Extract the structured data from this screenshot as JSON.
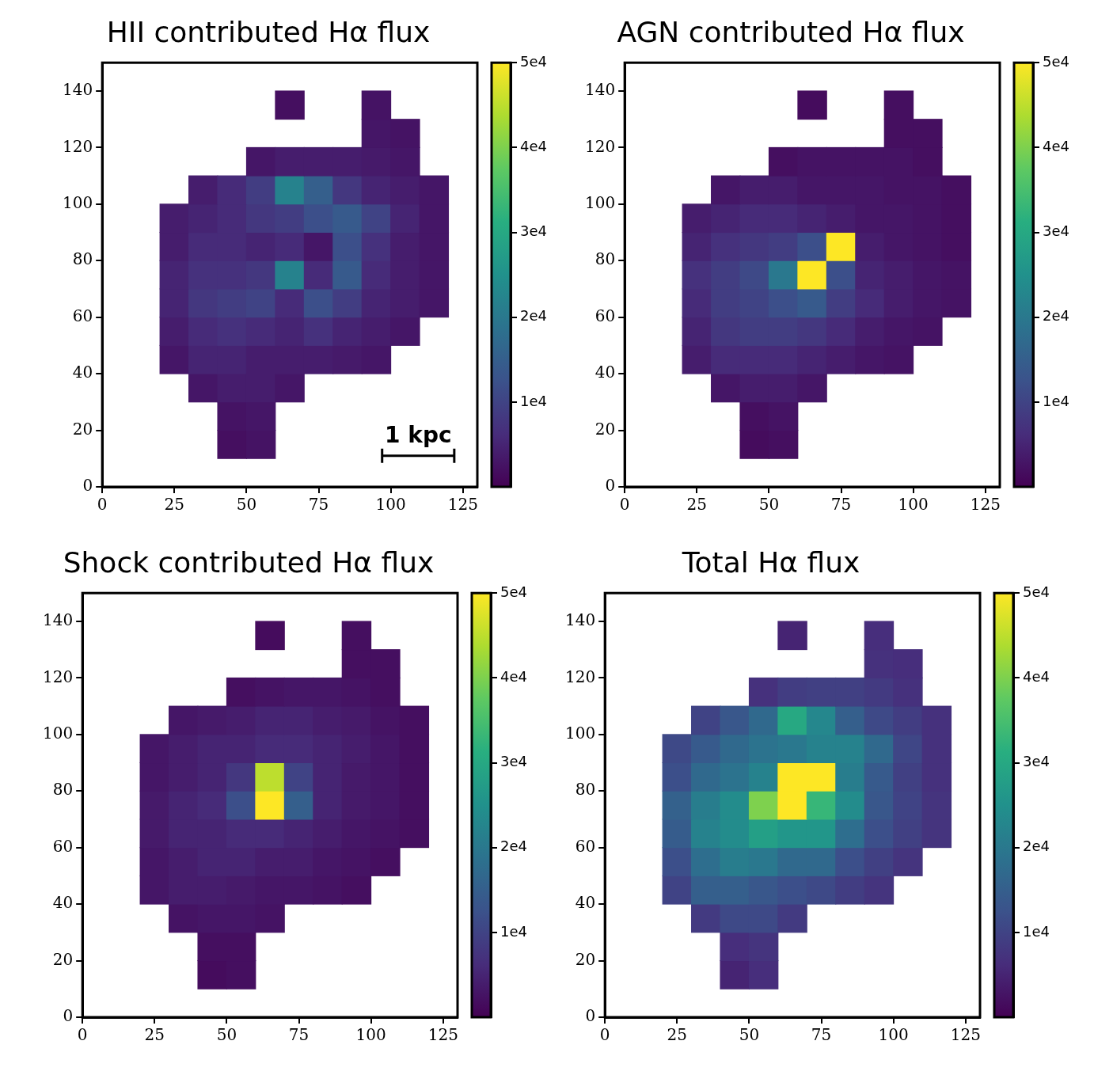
{
  "chart_data": [
    {
      "type": "heatmap",
      "title": "HII contributed Hα flux",
      "color": "viridis",
      "grid": false,
      "xlim": [
        0,
        130
      ],
      "xticks": [
        0,
        25,
        50,
        75,
        100,
        125
      ],
      "ylim": [
        0,
        150
      ],
      "yticks": [
        0,
        20,
        40,
        60,
        80,
        100,
        120,
        140
      ],
      "xbins": [
        0,
        10,
        20,
        30,
        40,
        50,
        60,
        70,
        80,
        90,
        100,
        110,
        120,
        130
      ],
      "ybins": [
        0,
        10,
        20,
        30,
        40,
        50,
        60,
        70,
        80,
        90,
        100,
        110,
        120,
        130,
        140,
        150
      ],
      "cells": [
        [
          null,
          null,
          null,
          null,
          null,
          null,
          null,
          null,
          null,
          null,
          null,
          null,
          null
        ],
        [
          null,
          null,
          null,
          null,
          2000,
          2500,
          null,
          null,
          null,
          null,
          null,
          null,
          null
        ],
        [
          null,
          null,
          null,
          null,
          2500,
          3000,
          null,
          null,
          null,
          null,
          null,
          null,
          null
        ],
        [
          null,
          null,
          null,
          3000,
          4000,
          4000,
          3000,
          null,
          null,
          null,
          null,
          null,
          null
        ],
        [
          null,
          null,
          3000,
          5000,
          5000,
          4000,
          4000,
          4000,
          3500,
          3000,
          null,
          null,
          null
        ],
        [
          null,
          null,
          4000,
          6000,
          7000,
          6000,
          5000,
          7000,
          5000,
          4000,
          3000,
          null,
          null
        ],
        [
          null,
          null,
          5000,
          8000,
          9000,
          10000,
          6000,
          12000,
          9000,
          5000,
          4000,
          3000,
          null
        ],
        [
          null,
          null,
          5000,
          7000,
          7000,
          8000,
          22000,
          6000,
          14000,
          6000,
          4000,
          3000,
          null
        ],
        [
          null,
          null,
          4000,
          6000,
          6000,
          5000,
          6000,
          3000,
          12000,
          7000,
          4000,
          3000,
          null
        ],
        [
          null,
          null,
          4000,
          5000,
          6000,
          8000,
          9000,
          12000,
          14000,
          10000,
          5000,
          3000,
          null
        ],
        [
          null,
          null,
          null,
          4000,
          6000,
          9000,
          22000,
          15000,
          8000,
          5000,
          4000,
          3000,
          null
        ],
        [
          null,
          null,
          null,
          null,
          null,
          3000,
          4000,
          4000,
          4000,
          3500,
          3000,
          null,
          null
        ],
        [
          null,
          null,
          null,
          null,
          null,
          null,
          null,
          null,
          null,
          3000,
          2500,
          null,
          null
        ],
        [
          null,
          null,
          null,
          null,
          null,
          null,
          2000,
          null,
          null,
          2500,
          null,
          null,
          null
        ],
        [
          null,
          null,
          null,
          null,
          null,
          null,
          null,
          null,
          null,
          null,
          null,
          null,
          null
        ]
      ],
      "colorbar": {
        "range": [
          0,
          50000
        ],
        "ticks": [
          {
            "value": 10000,
            "label": "1e4"
          },
          {
            "value": 20000,
            "label": "2e4"
          },
          {
            "value": 30000,
            "label": "3e4"
          },
          {
            "value": 40000,
            "label": "4e4"
          },
          {
            "value": 50000,
            "label": "5e4"
          }
        ]
      },
      "annotations": [
        {
          "text": "1 kpc",
          "x": [
            97,
            122
          ],
          "y": 11
        }
      ]
    },
    {
      "type": "heatmap",
      "title": "AGN contributed Hα flux",
      "color": "viridis",
      "grid": false,
      "xlim": [
        0,
        130
      ],
      "xticks": [
        0,
        25,
        50,
        75,
        100,
        125
      ],
      "ylim": [
        0,
        150
      ],
      "yticks": [
        0,
        20,
        40,
        60,
        80,
        100,
        120,
        140
      ],
      "xbins": [
        0,
        10,
        20,
        30,
        40,
        50,
        60,
        70,
        80,
        90,
        100,
        110,
        120,
        130
      ],
      "ybins": [
        0,
        10,
        20,
        30,
        40,
        50,
        60,
        70,
        80,
        90,
        100,
        110,
        120,
        130,
        140,
        150
      ],
      "cells": [
        [
          null,
          null,
          null,
          null,
          null,
          null,
          null,
          null,
          null,
          null,
          null,
          null,
          null
        ],
        [
          null,
          null,
          null,
          null,
          1500,
          2000,
          null,
          null,
          null,
          null,
          null,
          null,
          null
        ],
        [
          null,
          null,
          null,
          null,
          2000,
          2500,
          null,
          null,
          null,
          null,
          null,
          null,
          null
        ],
        [
          null,
          null,
          null,
          3000,
          4000,
          4000,
          3000,
          null,
          null,
          null,
          null,
          null,
          null
        ],
        [
          null,
          null,
          4000,
          6000,
          6000,
          6000,
          5000,
          4000,
          3000,
          2500,
          null,
          null,
          null
        ],
        [
          null,
          null,
          5000,
          8000,
          9000,
          9000,
          8000,
          6000,
          4000,
          3000,
          2500,
          null,
          null
        ],
        [
          null,
          null,
          6000,
          9000,
          10000,
          12000,
          14000,
          9000,
          6000,
          4000,
          3000,
          2500,
          null
        ],
        [
          null,
          null,
          7000,
          9000,
          11000,
          20000,
          50000,
          12000,
          5000,
          4000,
          3000,
          2500,
          null
        ],
        [
          null,
          null,
          5000,
          7000,
          8000,
          9000,
          12000,
          50000,
          4000,
          3000,
          2500,
          2000,
          null
        ],
        [
          null,
          null,
          4000,
          5000,
          6000,
          6000,
          5000,
          4000,
          3000,
          3000,
          2500,
          2000,
          null
        ],
        [
          null,
          null,
          null,
          3000,
          4000,
          4000,
          3000,
          3000,
          3000,
          2500,
          2500,
          2000,
          null
        ],
        [
          null,
          null,
          null,
          null,
          null,
          2000,
          2500,
          2500,
          2500,
          2500,
          2000,
          null,
          null
        ],
        [
          null,
          null,
          null,
          null,
          null,
          null,
          null,
          null,
          null,
          2000,
          2000,
          null,
          null
        ],
        [
          null,
          null,
          null,
          null,
          null,
          null,
          1500,
          null,
          null,
          2000,
          null,
          null,
          null
        ],
        [
          null,
          null,
          null,
          null,
          null,
          null,
          null,
          null,
          null,
          null,
          null,
          null,
          null
        ]
      ],
      "colorbar": {
        "range": [
          0,
          50000
        ],
        "ticks": [
          {
            "value": 10000,
            "label": "1e4"
          },
          {
            "value": 20000,
            "label": "2e4"
          },
          {
            "value": 30000,
            "label": "3e4"
          },
          {
            "value": 40000,
            "label": "4e4"
          },
          {
            "value": 50000,
            "label": "5e4"
          }
        ]
      }
    },
    {
      "type": "heatmap",
      "title": "Shock contributed Hα flux",
      "color": "viridis",
      "grid": false,
      "xlim": [
        0,
        130
      ],
      "xticks": [
        0,
        25,
        50,
        75,
        100,
        125
      ],
      "ylim": [
        0,
        150
      ],
      "yticks": [
        0,
        20,
        40,
        60,
        80,
        100,
        120,
        140
      ],
      "xbins": [
        0,
        10,
        20,
        30,
        40,
        50,
        60,
        70,
        80,
        90,
        100,
        110,
        120,
        130
      ],
      "ybins": [
        0,
        10,
        20,
        30,
        40,
        50,
        60,
        70,
        80,
        90,
        100,
        110,
        120,
        130,
        140,
        150
      ],
      "cells": [
        [
          null,
          null,
          null,
          null,
          null,
          null,
          null,
          null,
          null,
          null,
          null,
          null,
          null
        ],
        [
          null,
          null,
          null,
          null,
          1500,
          2000,
          null,
          null,
          null,
          null,
          null,
          null,
          null
        ],
        [
          null,
          null,
          null,
          null,
          2000,
          2000,
          null,
          null,
          null,
          null,
          null,
          null,
          null
        ],
        [
          null,
          null,
          null,
          2500,
          3000,
          3000,
          2500,
          null,
          null,
          null,
          null,
          null,
          null
        ],
        [
          null,
          null,
          3000,
          4000,
          4000,
          3500,
          3000,
          3000,
          2500,
          2000,
          null,
          null,
          null
        ],
        [
          null,
          null,
          3000,
          4000,
          5000,
          5000,
          4000,
          4000,
          3000,
          2500,
          2000,
          null,
          null
        ],
        [
          null,
          null,
          3500,
          5000,
          5000,
          6000,
          6000,
          5000,
          4000,
          3000,
          2500,
          2000,
          null
        ],
        [
          null,
          null,
          3500,
          5000,
          6000,
          12000,
          50000,
          15000,
          5000,
          3500,
          3000,
          2000,
          null
        ],
        [
          null,
          null,
          3000,
          4000,
          5000,
          8000,
          45000,
          10000,
          5000,
          3500,
          3000,
          2000,
          null
        ],
        [
          null,
          null,
          3000,
          4000,
          5000,
          5000,
          6000,
          6000,
          5000,
          4000,
          3000,
          2000,
          null
        ],
        [
          null,
          null,
          null,
          3000,
          3500,
          4000,
          5000,
          5000,
          4000,
          3500,
          2500,
          2000,
          null
        ],
        [
          null,
          null,
          null,
          null,
          null,
          2000,
          2500,
          3000,
          3000,
          2500,
          2000,
          null,
          null
        ],
        [
          null,
          null,
          null,
          null,
          null,
          null,
          null,
          null,
          null,
          2000,
          2000,
          null,
          null
        ],
        [
          null,
          null,
          null,
          null,
          null,
          null,
          1500,
          null,
          null,
          2000,
          null,
          null,
          null
        ],
        [
          null,
          null,
          null,
          null,
          null,
          null,
          null,
          null,
          null,
          null,
          null,
          null,
          null
        ]
      ],
      "colorbar": {
        "range": [
          0,
          50000
        ],
        "ticks": [
          {
            "value": 10000,
            "label": "1e4"
          },
          {
            "value": 20000,
            "label": "2e4"
          },
          {
            "value": 30000,
            "label": "3e4"
          },
          {
            "value": 40000,
            "label": "4e4"
          },
          {
            "value": 50000,
            "label": "5e4"
          }
        ]
      }
    },
    {
      "type": "heatmap",
      "title": "Total Hα flux",
      "color": "viridis",
      "grid": false,
      "xlim": [
        0,
        130
      ],
      "xticks": [
        0,
        25,
        50,
        75,
        100,
        125
      ],
      "ylim": [
        0,
        150
      ],
      "yticks": [
        0,
        20,
        40,
        60,
        80,
        100,
        120,
        140
      ],
      "xbins": [
        0,
        10,
        20,
        30,
        40,
        50,
        60,
        70,
        80,
        90,
        100,
        110,
        120,
        130
      ],
      "ybins": [
        0,
        10,
        20,
        30,
        40,
        50,
        60,
        70,
        80,
        90,
        100,
        110,
        120,
        130,
        140,
        150
      ],
      "cells": [
        [
          null,
          null,
          null,
          null,
          null,
          null,
          null,
          null,
          null,
          null,
          null,
          null,
          null
        ],
        [
          null,
          null,
          null,
          null,
          5000,
          6500,
          null,
          null,
          null,
          null,
          null,
          null,
          null
        ],
        [
          null,
          null,
          null,
          null,
          6500,
          7500,
          null,
          null,
          null,
          null,
          null,
          null,
          null
        ],
        [
          null,
          null,
          null,
          8500,
          11000,
          11000,
          8500,
          null,
          null,
          null,
          null,
          null,
          null
        ],
        [
          null,
          null,
          10000,
          15000,
          15000,
          13500,
          12000,
          11000,
          9000,
          7500,
          null,
          null,
          null
        ],
        [
          null,
          null,
          12000,
          18000,
          21000,
          20000,
          17000,
          17000,
          12000,
          9500,
          7500,
          null,
          null
        ],
        [
          null,
          null,
          14500,
          22000,
          24000,
          28000,
          26000,
          26000,
          18000,
          12000,
          9500,
          7500,
          null
        ],
        [
          null,
          null,
          15500,
          21000,
          24000,
          40000,
          50000,
          33000,
          24000,
          13500,
          10000,
          7500,
          null
        ],
        [
          null,
          null,
          12000,
          17000,
          19000,
          22000,
          50000,
          50000,
          21000,
          14000,
          9500,
          7000,
          null
        ],
        [
          null,
          null,
          11000,
          14000,
          17000,
          19000,
          20000,
          22000,
          22000,
          17000,
          10500,
          7000,
          null
        ],
        [
          null,
          null,
          null,
          10000,
          13500,
          17000,
          30000,
          23000,
          15000,
          11000,
          9000,
          7000,
          null
        ],
        [
          null,
          null,
          null,
          null,
          null,
          7000,
          9000,
          9500,
          9500,
          8500,
          7000,
          null,
          null
        ],
        [
          null,
          null,
          null,
          null,
          null,
          null,
          null,
          null,
          null,
          7000,
          6500,
          null,
          null
        ],
        [
          null,
          null,
          null,
          null,
          null,
          null,
          5000,
          null,
          null,
          6500,
          null,
          null,
          null
        ],
        [
          null,
          null,
          null,
          null,
          null,
          null,
          null,
          null,
          null,
          null,
          null,
          null,
          null
        ]
      ],
      "colorbar": {
        "range": [
          0,
          50000
        ],
        "ticks": [
          {
            "value": 10000,
            "label": "1e4"
          },
          {
            "value": 20000,
            "label": "2e4"
          },
          {
            "value": 30000,
            "label": "3e4"
          },
          {
            "value": 40000,
            "label": "4e4"
          },
          {
            "value": 50000,
            "label": "5e4"
          }
        ]
      }
    }
  ]
}
